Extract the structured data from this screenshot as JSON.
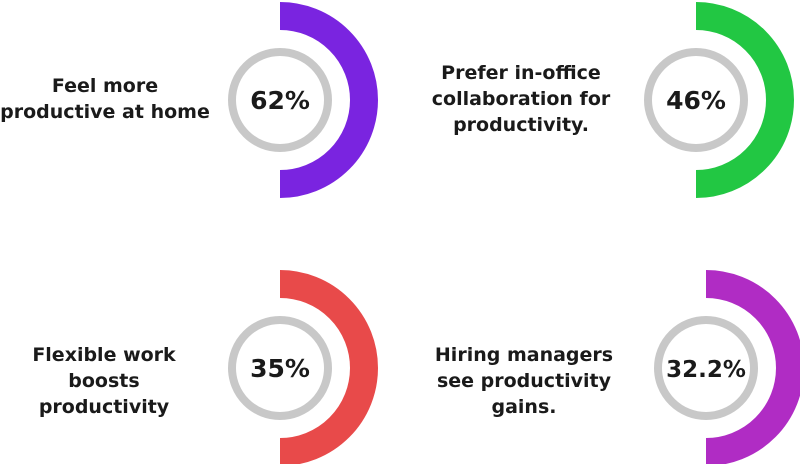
{
  "chart_data": {
    "type": "donut-stats",
    "items": [
      {
        "label": "Feel more productive at home",
        "value_text": "62%",
        "value": 62,
        "color": "#7a24e0"
      },
      {
        "label": "Prefer in-office collaboration for productivity.",
        "value_text": "46%",
        "value": 46,
        "color": "#22c743"
      },
      {
        "label": "Flexible work boosts productivity",
        "value_text": "35%",
        "value": 35,
        "color": "#e84a4a"
      },
      {
        "label": "Hiring managers see productivity gains.",
        "value_text": "32.2%",
        "value": 32.2,
        "color": "#b02cc4"
      }
    ],
    "ring_color": "#c8c8c8"
  }
}
